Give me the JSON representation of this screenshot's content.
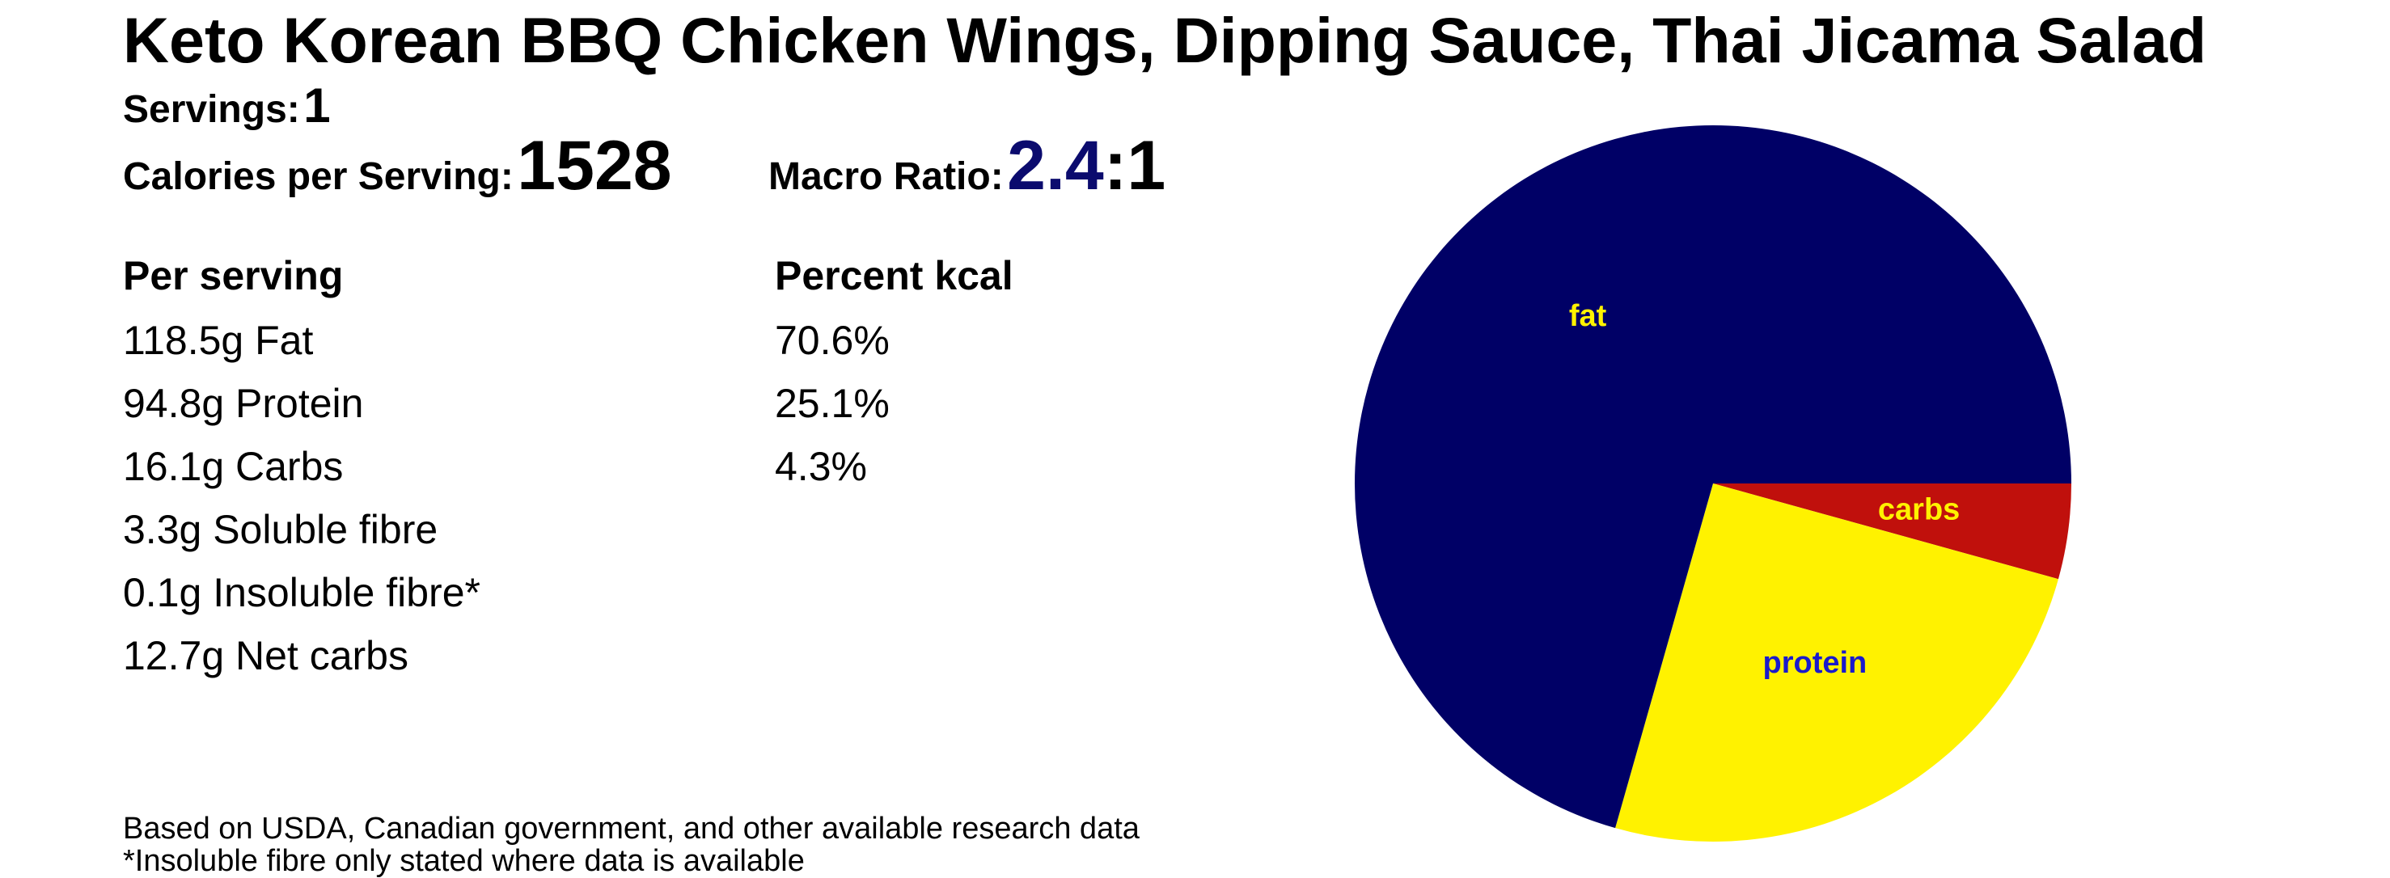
{
  "title": "Keto Korean BBQ Chicken Wings, Dipping Sauce, Thai Jicama Salad",
  "servings": {
    "label": "Servings:",
    "value": "1"
  },
  "calories": {
    "label": "Calories per Serving:",
    "value": "1528"
  },
  "macro_ratio": {
    "label": "Macro Ratio:",
    "value": "2.4",
    "suffix": ":1"
  },
  "per_serving": {
    "header": "Per serving",
    "rows": [
      "118.5g Fat",
      "94.8g Protein",
      "16.1g Carbs",
      "3.3g Soluble fibre",
      "0.1g Insoluble fibre*",
      "12.7g Net carbs"
    ]
  },
  "percent_kcal": {
    "header": "Percent kcal",
    "rows": [
      "70.6%",
      "25.1%",
      "4.3%"
    ]
  },
  "footnotes": [
    "Based on USDA, Canadian government, and other available research data",
    "*Insoluble fibre only stated where data is available"
  ],
  "colors": {
    "fat": "#000066",
    "protein": "#fff200",
    "carbs": "#c0100c",
    "fat_label": "#fff200",
    "protein_label": "#1a1acc",
    "carbs_label": "#fff200",
    "ratio_accent": "#0b0b6e"
  },
  "chart_data": {
    "type": "pie",
    "title": "",
    "start": "3 o'clock",
    "direction": "clockwise",
    "slices": [
      {
        "label": "carbs",
        "value": 4.3
      },
      {
        "label": "protein",
        "value": 25.1
      },
      {
        "label": "fat",
        "value": 70.6
      }
    ]
  }
}
